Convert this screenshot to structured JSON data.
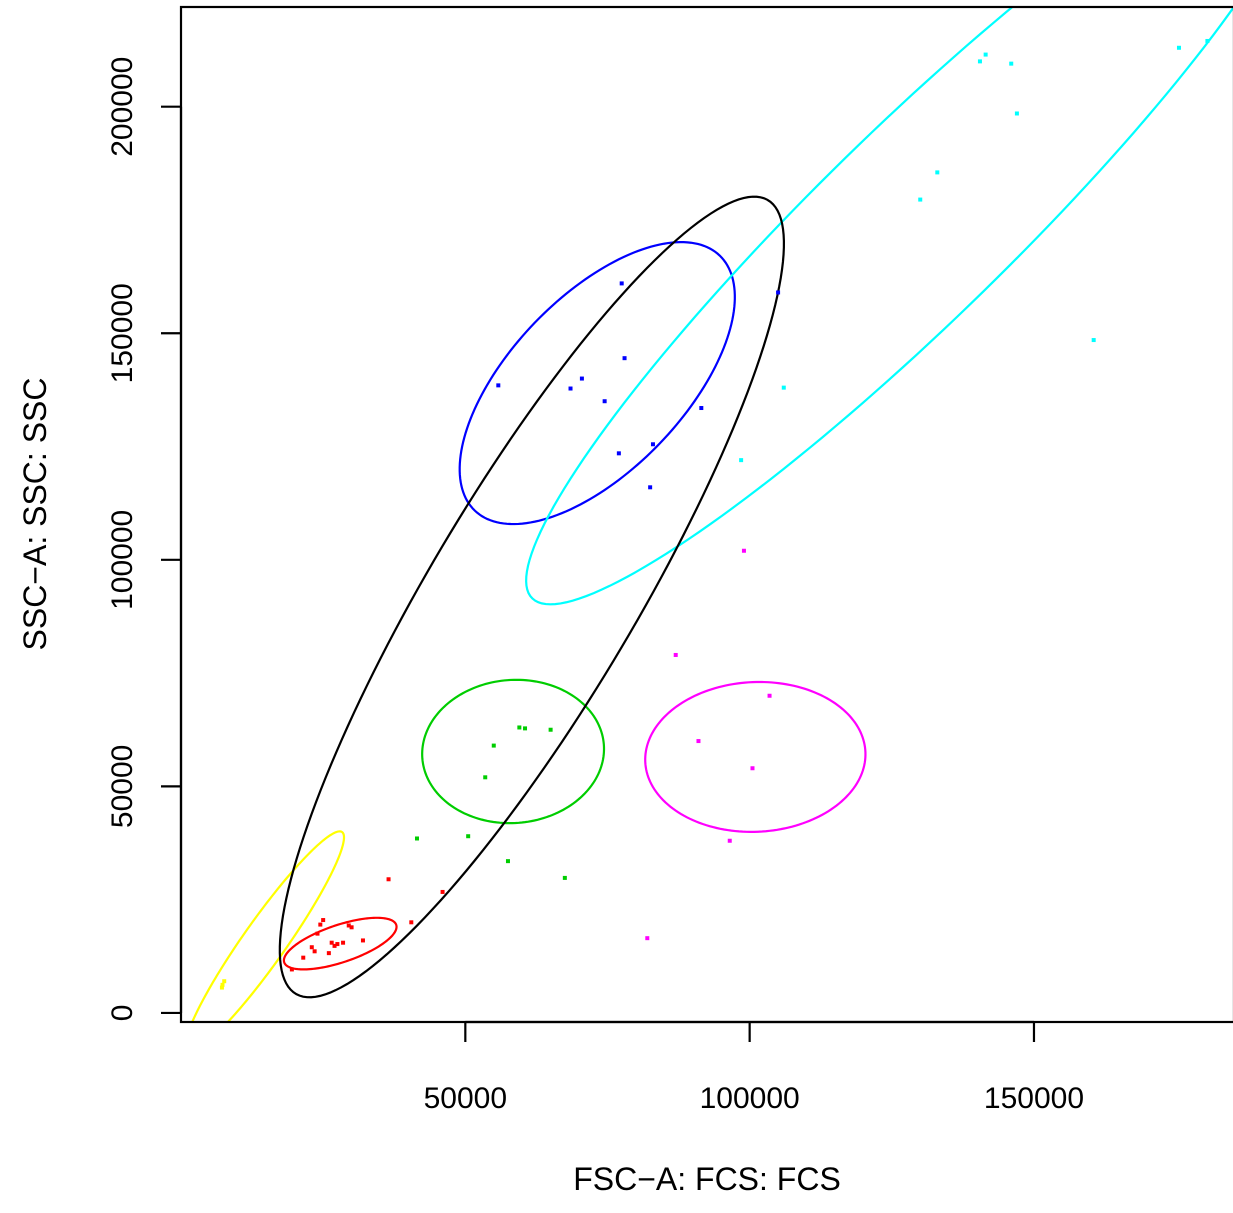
{
  "chart_data": {
    "type": "scatter",
    "xlabel": "FSC−A: FCS: FCS",
    "ylabel": "SSC−A: SSC: SSC",
    "xlim": [
      0,
      185000
    ],
    "ylim": [
      -2000,
      222000
    ],
    "x_ticks": [
      50000,
      100000,
      150000
    ],
    "x_tick_labels": [
      "50000",
      "100000",
      "150000"
    ],
    "y_ticks": [
      0,
      50000,
      100000,
      150000,
      200000
    ],
    "y_tick_labels": [
      "0",
      "50000",
      "100000",
      "150000",
      "200000"
    ],
    "grid": false,
    "series": [
      {
        "color": "#FFFF00",
        "points": [
          [
            7300,
            6200
          ],
          [
            7600,
            7000
          ],
          [
            7200,
            5600
          ]
        ]
      },
      {
        "color": "#FF0000",
        "points": [
          [
            19500,
            9600
          ],
          [
            21500,
            12200
          ],
          [
            23500,
            13600
          ],
          [
            23000,
            14500
          ],
          [
            24000,
            17500
          ],
          [
            24500,
            19500
          ],
          [
            25000,
            20500
          ],
          [
            26000,
            13200
          ],
          [
            26500,
            15500
          ],
          [
            27000,
            14800
          ],
          [
            27500,
            15200
          ],
          [
            28500,
            15500
          ],
          [
            29500,
            19300
          ],
          [
            30000,
            18900
          ],
          [
            32000,
            16000
          ],
          [
            36500,
            29500
          ],
          [
            40500,
            20000
          ],
          [
            46000,
            26700
          ]
        ]
      },
      {
        "color": "#00CD00",
        "points": [
          [
            41500,
            38500
          ],
          [
            50500,
            39000
          ],
          [
            53500,
            52000
          ],
          [
            55000,
            59000
          ],
          [
            57500,
            33500
          ],
          [
            59500,
            63000
          ],
          [
            60500,
            62800
          ],
          [
            65000,
            62500
          ],
          [
            67500,
            29800
          ]
        ]
      },
      {
        "color": "#0000FF",
        "points": [
          [
            55800,
            138500
          ],
          [
            68500,
            137800
          ],
          [
            70500,
            140000
          ],
          [
            74500,
            135000
          ],
          [
            77000,
            123500
          ],
          [
            77500,
            161000
          ],
          [
            78000,
            144500
          ],
          [
            82500,
            116000
          ],
          [
            83000,
            125500
          ],
          [
            91500,
            133500
          ],
          [
            105000,
            159000
          ]
        ]
      },
      {
        "color": "#00FFFF",
        "points": [
          [
            98500,
            122000
          ],
          [
            106000,
            138000
          ],
          [
            130000,
            179500
          ],
          [
            133000,
            185500
          ],
          [
            140500,
            210000
          ],
          [
            141500,
            211500
          ],
          [
            146000,
            209500
          ],
          [
            147000,
            198500
          ],
          [
            160500,
            148500
          ],
          [
            175500,
            213000
          ],
          [
            180500,
            214500
          ]
        ]
      },
      {
        "color": "#FF00FF",
        "points": [
          [
            82000,
            16500
          ],
          [
            87000,
            79000
          ],
          [
            91000,
            60000
          ],
          [
            96500,
            38000
          ],
          [
            99000,
            102000
          ],
          [
            100500,
            54000
          ],
          [
            103500,
            70000
          ]
        ]
      }
    ],
    "ellipses": [
      {
        "color": "#FFFF00",
        "cx": 14700,
        "cy": 15700,
        "rx": 27800,
        "ry": 4000,
        "angle_deg": 60.9
      },
      {
        "color": "#FF0000",
        "cx": 28000,
        "cy": 15300,
        "rx": 10700,
        "ry": 4000,
        "angle_deg": 24.1
      },
      {
        "color": "#00CD00",
        "cx": 58400,
        "cy": 57700,
        "rx": 16200,
        "ry": 15600,
        "angle_deg": 36.6
      },
      {
        "color": "#0000FF",
        "cx": 73200,
        "cy": 139000,
        "rx": 35700,
        "ry": 16700,
        "angle_deg": 56.3
      },
      {
        "color": "#00FFFF",
        "cx": 129000,
        "cy": 174000,
        "rx": 106500,
        "ry": 18700,
        "angle_deg": 51.2
      },
      {
        "color": "#FF00FF",
        "cx": 101000,
        "cy": 56500,
        "rx": 19400,
        "ry": 16500,
        "angle_deg": 6.4
      },
      {
        "color": "#000000",
        "cx": 61700,
        "cy": 91800,
        "rx": 97000,
        "ry": 19000,
        "angle_deg": 65.1
      }
    ]
  }
}
